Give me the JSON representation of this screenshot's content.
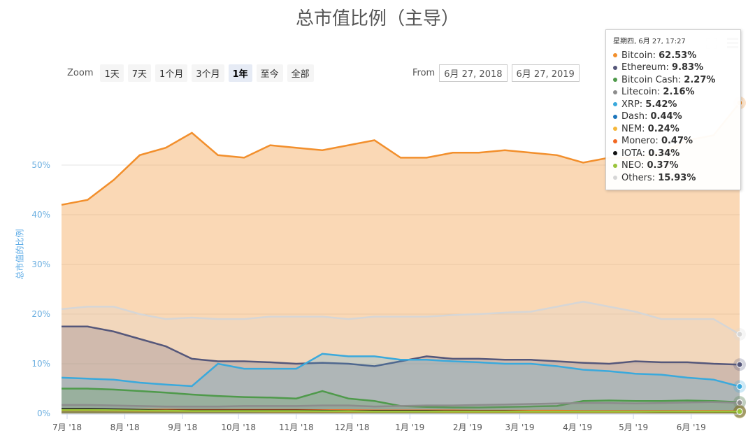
{
  "chart_data": {
    "type": "area",
    "title": "总市值比例（主导）",
    "ylabel": "总市值的比例",
    "ylim": [
      0,
      62.5
    ],
    "yticks": [
      "0%",
      "10%",
      "20%",
      "30%",
      "40%",
      "50%"
    ],
    "ytick_values": [
      0,
      10,
      20,
      30,
      40,
      50
    ],
    "xlim": [
      "2018-06-28",
      "2019-06-27"
    ],
    "xticks": [
      {
        "date": "2018-07-01",
        "label": "7月 '18"
      },
      {
        "date": "2018-08-01",
        "label": "8月 '18"
      },
      {
        "date": "2018-09-01",
        "label": "9月 '18"
      },
      {
        "date": "2018-10-01",
        "label": "10月 '18"
      },
      {
        "date": "2018-11-01",
        "label": "11月 '18"
      },
      {
        "date": "2018-12-01",
        "label": "12月 '18"
      },
      {
        "date": "2019-01-01",
        "label": "1月 '19"
      },
      {
        "date": "2019-02-01",
        "label": "2月 '19"
      },
      {
        "date": "2019-03-01",
        "label": "3月 '19"
      },
      {
        "date": "2019-04-01",
        "label": "4月 '19"
      },
      {
        "date": "2019-05-01",
        "label": "5月 '19"
      },
      {
        "date": "2019-06-01",
        "label": "6月 '19"
      }
    ],
    "grid": true,
    "x": [
      "2018-06-28",
      "2018-07-12",
      "2018-07-26",
      "2018-08-09",
      "2018-08-23",
      "2018-09-06",
      "2018-09-20",
      "2018-10-04",
      "2018-10-18",
      "2018-11-01",
      "2018-11-15",
      "2018-11-29",
      "2018-12-13",
      "2018-12-27",
      "2019-01-10",
      "2019-01-24",
      "2019-02-07",
      "2019-02-21",
      "2019-03-07",
      "2019-03-21",
      "2019-04-04",
      "2019-04-18",
      "2019-05-02",
      "2019-05-16",
      "2019-05-30",
      "2019-06-13",
      "2019-06-27"
    ],
    "series": [
      {
        "name": "Bitcoin",
        "color": "#f28f2c",
        "values": [
          42,
          43,
          47,
          52,
          53.5,
          56.5,
          52,
          51.5,
          54,
          53.5,
          53,
          54,
          55,
          51.5,
          51.5,
          52.5,
          52.5,
          53,
          52.5,
          52,
          50.5,
          51.5,
          51.5,
          52.5,
          55,
          56,
          62.53
        ]
      },
      {
        "name": "Others",
        "color": "#d6d6d6",
        "values": [
          21,
          21.5,
          21.5,
          20,
          19,
          19.3,
          19,
          19,
          19.5,
          19.5,
          19.5,
          19,
          19.5,
          19.5,
          19.5,
          19.8,
          20,
          20.3,
          20.5,
          21.5,
          22.5,
          21.5,
          20.5,
          19,
          19,
          19,
          15.93
        ]
      },
      {
        "name": "Ethereum",
        "color": "#55577a",
        "values": [
          17.5,
          17.5,
          16.5,
          15,
          13.5,
          11,
          10.5,
          10.5,
          10.3,
          10,
          10.2,
          10,
          9.5,
          10.5,
          11.5,
          11,
          11,
          10.8,
          10.8,
          10.5,
          10.2,
          10,
          10.5,
          10.3,
          10.3,
          10,
          9.83
        ]
      },
      {
        "name": "XRP",
        "color": "#3aa9dc",
        "values": [
          7.2,
          7,
          6.8,
          6.2,
          5.8,
          5.5,
          10,
          9,
          9,
          9,
          12,
          11.5,
          11.5,
          10.8,
          10.8,
          10.5,
          10.3,
          10,
          10,
          9.5,
          8.8,
          8.5,
          8,
          7.8,
          7.2,
          6.8,
          5.42
        ]
      },
      {
        "name": "Bitcoin Cash",
        "color": "#4f9a4b",
        "values": [
          5,
          5,
          4.8,
          4.5,
          4.2,
          3.8,
          3.5,
          3.3,
          3.2,
          3,
          4.5,
          3,
          2.5,
          1.5,
          1.3,
          1.2,
          1.2,
          1.3,
          1.4,
          1.5,
          2.5,
          2.6,
          2.5,
          2.5,
          2.6,
          2.5,
          2.27
        ]
      },
      {
        "name": "Litecoin",
        "color": "#8c8c8c",
        "values": [
          1.7,
          1.7,
          1.6,
          1.5,
          1.4,
          1.4,
          1.4,
          1.5,
          1.5,
          1.5,
          1.6,
          1.6,
          1.4,
          1.5,
          1.6,
          1.6,
          1.7,
          1.8,
          1.9,
          2.0,
          2.1,
          2.1,
          2.0,
          2.1,
          2.2,
          2.3,
          2.16
        ]
      },
      {
        "name": "Dash",
        "color": "#1c75bc",
        "values": [
          0.8,
          0.8,
          0.8,
          0.75,
          0.7,
          0.7,
          0.7,
          0.65,
          0.65,
          0.65,
          0.6,
          0.6,
          0.55,
          0.55,
          0.5,
          0.5,
          0.5,
          0.5,
          0.5,
          0.5,
          0.5,
          0.5,
          0.5,
          0.5,
          0.45,
          0.45,
          0.44
        ]
      },
      {
        "name": "NEM",
        "color": "#f5b73a",
        "values": [
          0.6,
          0.6,
          0.55,
          0.5,
          0.5,
          0.45,
          0.45,
          0.45,
          0.4,
          0.4,
          0.4,
          0.35,
          0.35,
          0.35,
          0.35,
          0.3,
          0.3,
          0.3,
          0.3,
          0.3,
          0.3,
          0.3,
          0.3,
          0.25,
          0.25,
          0.25,
          0.24
        ]
      },
      {
        "name": "Monero",
        "color": "#f26822",
        "values": [
          0.8,
          0.8,
          0.8,
          0.75,
          0.75,
          0.7,
          0.7,
          0.7,
          0.7,
          0.7,
          0.65,
          0.65,
          0.6,
          0.6,
          0.6,
          0.6,
          0.55,
          0.55,
          0.55,
          0.55,
          0.5,
          0.5,
          0.5,
          0.5,
          0.5,
          0.5,
          0.47
        ]
      },
      {
        "name": "IOTA",
        "color": "#111111",
        "values": [
          0.9,
          0.9,
          0.8,
          0.7,
          0.6,
          0.6,
          0.6,
          0.6,
          0.6,
          0.6,
          0.55,
          0.5,
          0.5,
          0.5,
          0.5,
          0.45,
          0.45,
          0.45,
          0.4,
          0.4,
          0.4,
          0.4,
          0.4,
          0.35,
          0.35,
          0.35,
          0.34
        ]
      },
      {
        "name": "NEO",
        "color": "#9ac43a",
        "values": [
          0.7,
          0.7,
          0.65,
          0.6,
          0.55,
          0.5,
          0.5,
          0.5,
          0.5,
          0.5,
          0.45,
          0.45,
          0.4,
          0.4,
          0.4,
          0.4,
          0.4,
          0.4,
          0.4,
          0.4,
          0.4,
          0.4,
          0.4,
          0.4,
          0.4,
          0.4,
          0.37
        ]
      }
    ]
  },
  "zoom": {
    "label": "Zoom",
    "buttons": [
      "1天",
      "7天",
      "1个月",
      "3个月",
      "1年",
      "至今",
      "全部"
    ],
    "active": "1年"
  },
  "range": {
    "from_label": "From",
    "from_value": "6月 27, 2018",
    "to_value": "6月 27, 2019"
  },
  "tooltip": {
    "header": "星期四, 6月 27, 17:27",
    "rows": [
      {
        "name": "Bitcoin",
        "value": "62.53%",
        "color": "#f28f2c"
      },
      {
        "name": "Ethereum",
        "value": "9.83%",
        "color": "#55577a"
      },
      {
        "name": "Bitcoin Cash",
        "value": "2.27%",
        "color": "#4f9a4b"
      },
      {
        "name": "Litecoin",
        "value": "2.16%",
        "color": "#8c8c8c"
      },
      {
        "name": "XRP",
        "value": "5.42%",
        "color": "#3aa9dc"
      },
      {
        "name": "Dash",
        "value": "0.44%",
        "color": "#1c75bc"
      },
      {
        "name": "NEM",
        "value": "0.24%",
        "color": "#f5b73a"
      },
      {
        "name": "Monero",
        "value": "0.47%",
        "color": "#f26822"
      },
      {
        "name": "IOTA",
        "value": "0.34%",
        "color": "#111111"
      },
      {
        "name": "NEO",
        "value": "0.37%",
        "color": "#9ac43a"
      },
      {
        "name": "Others",
        "value": "15.93%",
        "color": "#d6d6d6"
      }
    ]
  }
}
